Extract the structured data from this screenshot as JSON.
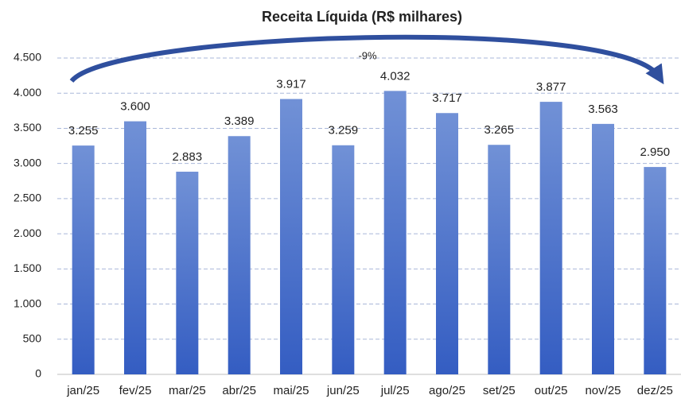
{
  "chart_data": {
    "type": "bar",
    "title": "Receita Líquida (R$ milhares)",
    "categories": [
      "jan/25",
      "fev/25",
      "mar/25",
      "abr/25",
      "mai/25",
      "jun/25",
      "jul/25",
      "ago/25",
      "set/25",
      "out/25",
      "nov/25",
      "dez/25"
    ],
    "values": [
      3255,
      3600,
      2883,
      3389,
      3917,
      3259,
      4032,
      3717,
      3265,
      3877,
      3563,
      2950
    ],
    "value_labels": [
      "3.255",
      "3.600",
      "2.883",
      "3.389",
      "3.917",
      "3.259",
      "4.032",
      "3.717",
      "3.265",
      "3.877",
      "3.563",
      "2.950"
    ],
    "color": "#4a72cc",
    "ylim": [
      0,
      4500
    ],
    "yticks": [
      0,
      500,
      {
        "value": 1000,
        "label": "1.000"
      },
      {
        "value": 1500,
        "label": "1.500"
      },
      {
        "value": 2000,
        "label": "2.000"
      },
      {
        "value": 2500,
        "label": "2.500"
      },
      {
        "value": 3000,
        "label": "3.000"
      },
      {
        "value": 3500,
        "label": "3.500"
      },
      {
        "value": 4000,
        "label": "4.000"
      },
      {
        "value": 4500,
        "label": "4.500"
      }
    ],
    "grid": true,
    "annotation": "-9%"
  }
}
